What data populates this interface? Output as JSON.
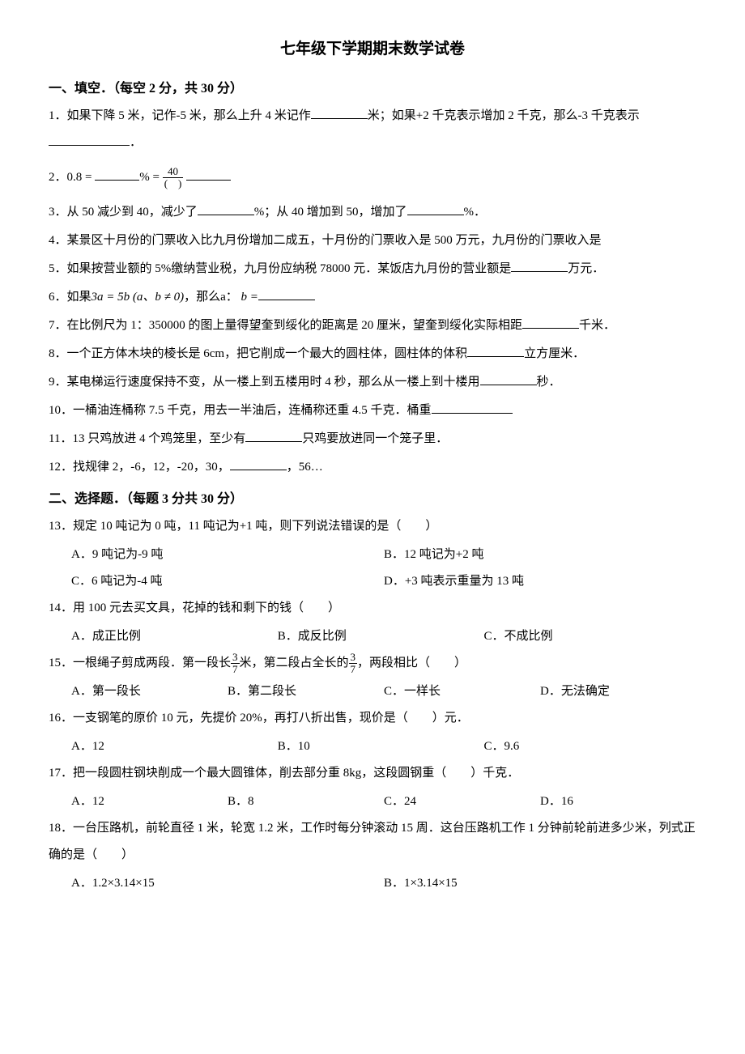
{
  "title": "七年级下学期期末数学试卷",
  "section1_header": "一、填空．（每空 2 分，共 30 分）",
  "q1_a": "1．如果下降 5 米，记作-5 米，那么上升 4 米记作",
  "q1_b": "米；如果+2 千克表示增加 2 千克，那么-3 千克表示",
  "q1_c": "．",
  "q2_a": "2．",
  "q2_08": "0.8 =",
  "q2_pct": "% =",
  "q2_40": "40",
  "q2_paren": "(　)",
  "q3_a": "3．从 50 减少到 40，减少了",
  "q3_b": "%；从 40 增加到 50，增加了",
  "q3_c": "%．",
  "q4": "4．某景区十月份的门票收入比九月份增加二成五，十月份的门票收入是 500 万元，九月份的门票收入是",
  "q5_a": "5．如果按营业额的 5%缴纳营业税，九月份应纳税 78000 元．某饭店九月份的营业额是",
  "q5_b": "万元．",
  "q6_a": "6．如果",
  "q6_formula": "3a = 5b (a、b ≠ 0)",
  "q6_b": "，那么a：",
  "q6_c": "b =",
  "q7_a": "7．在比例尺为 1：350000 的图上量得望奎到绥化的距离是 20 厘米，望奎到绥化实际相距",
  "q7_b": "千米．",
  "q8_a": "8．一个正方体木块的棱长是 6cm，把它削成一个最大的圆柱体，圆柱体的体积",
  "q8_b": "立方厘米．",
  "q9_a": "9．某电梯运行速度保持不变，从一楼上到五楼用时 4 秒，那么从一楼上到十楼用",
  "q9_b": "秒．",
  "q10_a": "10．一桶油连桶称 7.5 千克，用去一半油后，连桶称还重 4.5 千克．桶重",
  "q11_a": "11．13 只鸡放进 4 个鸡笼里，至少有",
  "q11_b": "只鸡要放进同一个笼子里．",
  "q12_a": "12．找规律 2，-6，12，-20，30，",
  "q12_b": "，56…",
  "section2_header": "二、选择题．（每题 3 分共 30 分）",
  "q13": "13．规定 10 吨记为 0 吨，11 吨记为+1 吨，则下列说法错误的是（　　）",
  "q13_a": "A．9 吨记为-9 吨",
  "q13_b": "B．12 吨记为+2 吨",
  "q13_c": "C．6 吨记为-4 吨",
  "q13_d": "D．+3 吨表示重量为 13 吨",
  "q14": "14．用 100 元去买文具，花掉的钱和剩下的钱（　　）",
  "q14_a": "A．成正比例",
  "q14_b": "B．成反比例",
  "q14_c": "C．不成比例",
  "q15_a": "15．一根绳子剪成两段．第一段长",
  "q15_b": "米，第二段占全长的",
  "q15_c": "，两段相比（　　）",
  "q15_37num": "3",
  "q15_37den": "7",
  "q15_ca": "A．第一段长",
  "q15_cb": "B．第二段长",
  "q15_cc": "C．一样长",
  "q15_cd": "D．无法确定",
  "q16": "16．一支钢笔的原价 10 元，先提价 20%，再打八折出售，现价是（　　）元．",
  "q16_a": "A．12",
  "q16_b": "B．10",
  "q16_c": "C．9.6",
  "q17": "17．把一段圆柱钢块削成一个最大圆锥体，削去部分重 8kg，这段圆钢重（　　）千克．",
  "q17_a": "A．12",
  "q17_b": "B．8",
  "q17_c": "C．24",
  "q17_d": "D．16",
  "q18": "18．一台压路机，前轮直径 1 米，轮宽 1.2 米，工作时每分钟滚动 15 周．这台压路机工作 1 分钟前轮前进多少米，列式正确的是（　　）",
  "q18_a": "A．1.2×3.14×15",
  "q18_b": "B．1×3.14×15"
}
